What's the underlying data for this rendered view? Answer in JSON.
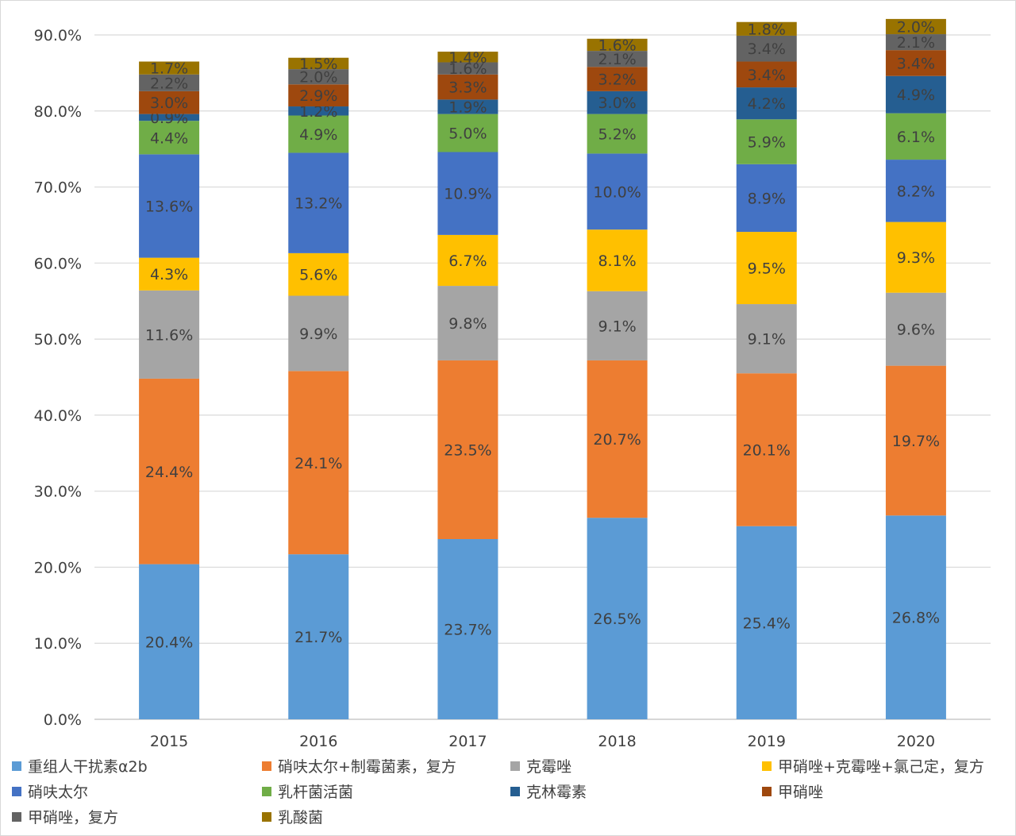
{
  "chart_data": {
    "type": "bar",
    "stacked": true,
    "categories": [
      "2015",
      "2016",
      "2017",
      "2018",
      "2019",
      "2020"
    ],
    "ylim": [
      0,
      90
    ],
    "yticks": [
      "0.0%",
      "10.0%",
      "20.0%",
      "30.0%",
      "40.0%",
      "50.0%",
      "60.0%",
      "70.0%",
      "80.0%",
      "90.0%"
    ],
    "grid": true,
    "legend_position": "bottom",
    "series": [
      {
        "name": "重组人干扰素α2b",
        "color": "#5B9BD5",
        "values": [
          20.4,
          21.7,
          23.7,
          26.5,
          25.4,
          26.8
        ],
        "labels": [
          "20.4%",
          "21.7%",
          "23.7%",
          "26.5%",
          "25.4%",
          "26.8%"
        ]
      },
      {
        "name": "硝呋太尔+制霉菌素，复方",
        "color": "#ED7D31",
        "values": [
          24.4,
          24.1,
          23.5,
          20.7,
          20.1,
          19.7
        ],
        "labels": [
          "24.4%",
          "24.1%",
          "23.5%",
          "20.7%",
          "20.1%",
          "19.7%"
        ]
      },
      {
        "name": "克霉唑",
        "color": "#A5A5A5",
        "values": [
          11.6,
          9.9,
          9.8,
          9.1,
          9.1,
          9.6
        ],
        "labels": [
          "11.6%",
          "9.9%",
          "9.8%",
          "9.1%",
          "9.1%",
          "9.6%"
        ]
      },
      {
        "name": "甲硝唑+克霉唑+氯己定，复方",
        "color": "#FFC000",
        "values": [
          4.3,
          5.6,
          6.7,
          8.1,
          9.5,
          9.3
        ],
        "labels": [
          "4.3%",
          "5.6%",
          "6.7%",
          "8.1%",
          "9.5%",
          "9.3%"
        ]
      },
      {
        "name": "硝呋太尔",
        "color": "#4472C4",
        "values": [
          13.6,
          13.2,
          10.9,
          10.0,
          8.9,
          8.2
        ],
        "labels": [
          "13.6%",
          "13.2%",
          "10.9%",
          "10.0%",
          "8.9%",
          "8.2%"
        ]
      },
      {
        "name": "乳杆菌活菌",
        "color": "#70AD47",
        "values": [
          4.4,
          4.9,
          5.0,
          5.2,
          5.9,
          6.1
        ],
        "labels": [
          "4.4%",
          "4.9%",
          "5.0%",
          "5.2%",
          "5.9%",
          "6.1%"
        ]
      },
      {
        "name": "克林霉素",
        "color": "#255E91",
        "values": [
          0.9,
          1.2,
          1.9,
          3.0,
          4.2,
          4.9
        ],
        "labels": [
          "0.9%",
          "1.2%",
          "1.9%",
          "3.0%",
          "4.2%",
          "4.9%"
        ]
      },
      {
        "name": "甲硝唑",
        "color": "#9E480E",
        "values": [
          3.0,
          2.9,
          3.3,
          3.2,
          3.4,
          3.4
        ],
        "labels": [
          "3.0%",
          "2.9%",
          "3.3%",
          "3.2%",
          "3.4%",
          "3.4%"
        ]
      },
      {
        "name": "甲硝唑，复方",
        "color": "#636363",
        "values": [
          2.2,
          2.0,
          1.6,
          2.1,
          3.4,
          2.1
        ],
        "labels": [
          "2.2%",
          "2.0%",
          "1.6%",
          "2.1%",
          "3.4%",
          "2.1%"
        ]
      },
      {
        "name": "乳酸菌",
        "color": "#997300",
        "values": [
          1.7,
          1.5,
          1.4,
          1.6,
          1.8,
          2.0
        ],
        "labels": [
          "1.7%",
          "1.5%",
          "1.4%",
          "1.6%",
          "1.8%",
          "2.0%"
        ]
      }
    ]
  }
}
